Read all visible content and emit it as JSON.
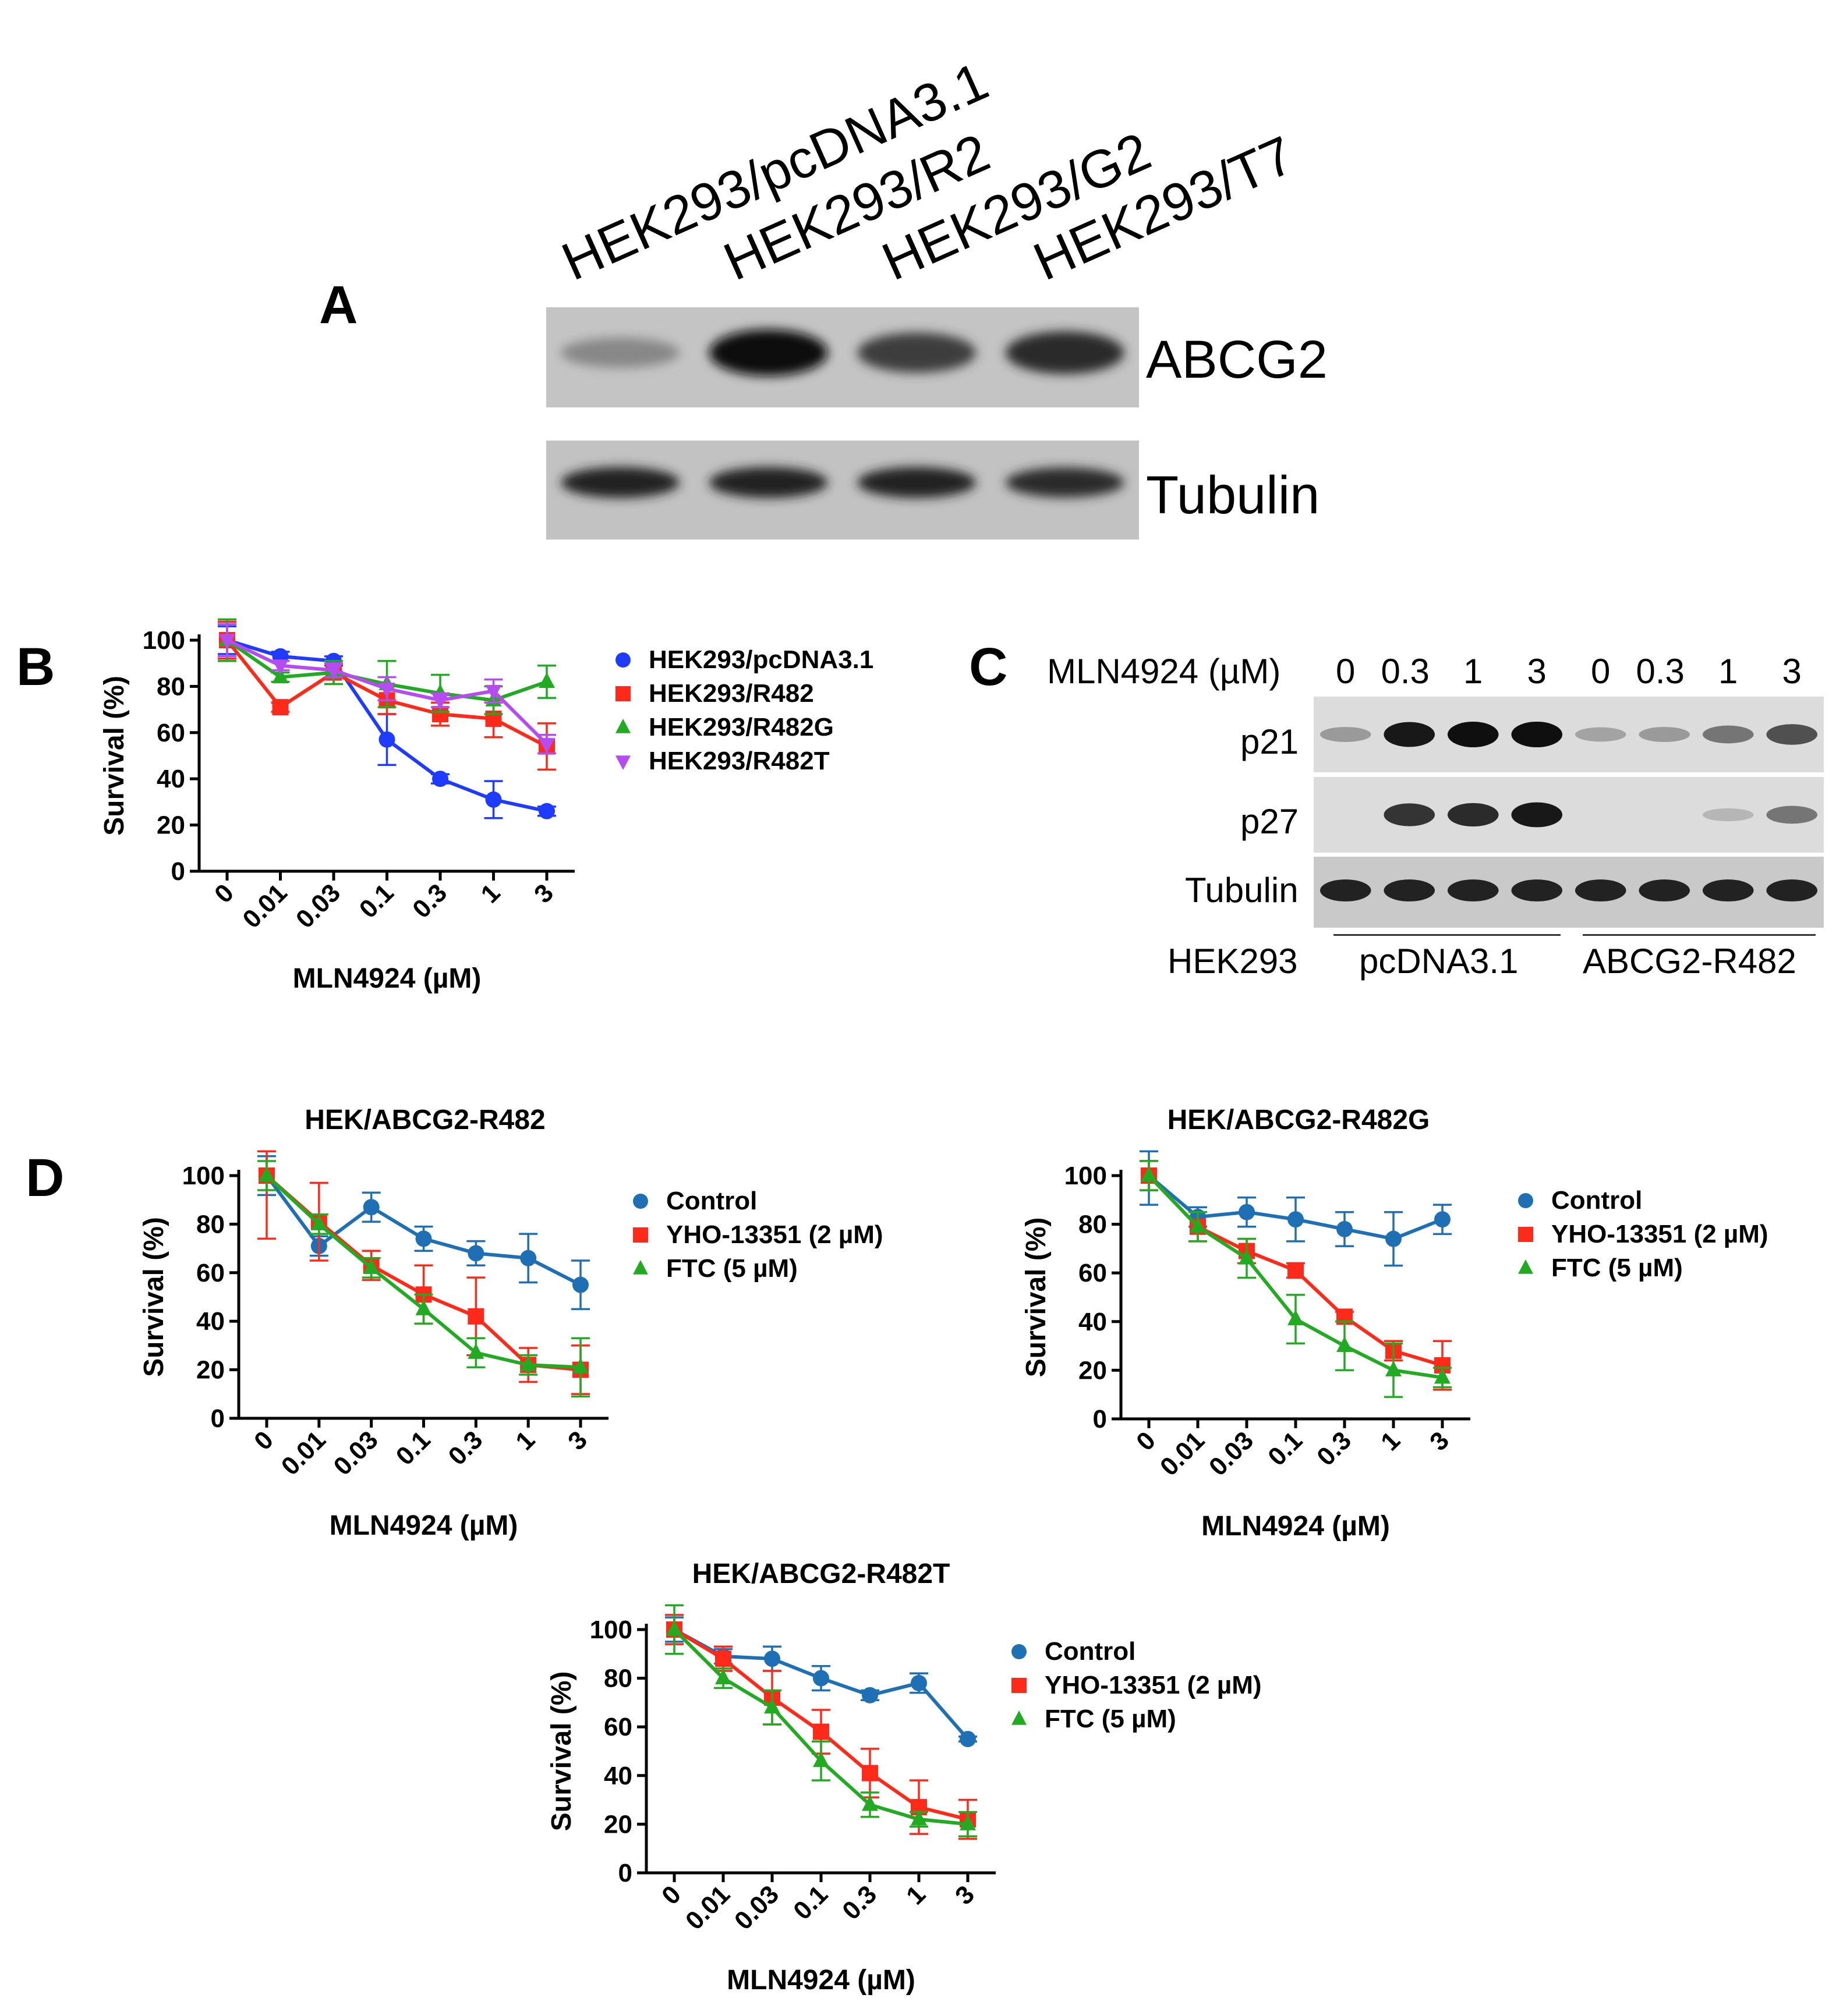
{
  "panels": {
    "A": "A",
    "B": "B",
    "C": "C",
    "D": "D"
  },
  "panel_a": {
    "lanes": [
      "HEK293/pcDNA3.1",
      "HEK293/R2",
      "HEK293/G2",
      "HEK293/T7"
    ],
    "rows": [
      "ABCG2",
      "Tubulin"
    ],
    "bands": {
      "ABCG2": [
        0.35,
        1.0,
        0.75,
        0.85
      ],
      "Tubulin": [
        0.9,
        0.9,
        0.9,
        0.85
      ]
    }
  },
  "panel_c": {
    "dose_label": "MLN4924 (µM)",
    "doses": [
      "0",
      "0.3",
      "1",
      "3",
      "0",
      "0.3",
      "1",
      "3"
    ],
    "rows": [
      "p21",
      "p27",
      "Tubulin"
    ],
    "bands": {
      "p21": [
        0.25,
        0.95,
        1.0,
        1.0,
        0.2,
        0.25,
        0.45,
        0.65
      ],
      "p27": [
        0.0,
        0.8,
        0.85,
        0.95,
        0.0,
        0.0,
        0.1,
        0.45
      ],
      "Tubulin": [
        0.9,
        0.9,
        0.9,
        0.9,
        0.9,
        0.9,
        0.9,
        0.9
      ]
    },
    "cell_label": "HEK293",
    "groups": [
      "pcDNA3.1",
      "ABCG2-R482"
    ]
  },
  "chart_data": [
    {
      "id": "B",
      "type": "line",
      "title": "",
      "xlabel": "MLN4924 (µM)",
      "ylabel": "Survival (%)",
      "categories": [
        "0",
        "0.01",
        "0.03",
        "0.1",
        "0.3",
        "1",
        "3"
      ],
      "ylim": [
        0,
        100
      ],
      "yticks": [
        0,
        20,
        40,
        60,
        80,
        100
      ],
      "legend_position": "right",
      "series": [
        {
          "name": "HEK293/pcDNA3.1",
          "color": "#1f3bff",
          "marker": "circle",
          "values": [
            100,
            93,
            91,
            57,
            40,
            31,
            26
          ],
          "err": [
            6,
            2,
            2,
            11,
            2,
            8,
            2
          ]
        },
        {
          "name": "HEK293/R482",
          "color": "#ff2a1a",
          "marker": "square",
          "values": [
            100,
            71,
            86,
            74,
            68,
            66,
            54
          ],
          "err": [
            8,
            2,
            5,
            6,
            5,
            8,
            10
          ]
        },
        {
          "name": "HEK293/R482G",
          "color": "#22aa22",
          "marker": "triangle",
          "values": [
            100,
            84,
            86,
            81,
            77,
            74,
            82
          ],
          "err": [
            9,
            2,
            5,
            10,
            8,
            6,
            7
          ]
        },
        {
          "name": "HEK293/R482T",
          "color": "#b44cf0",
          "marker": "triangle-down",
          "values": [
            100,
            89,
            87,
            79,
            74,
            78,
            55
          ],
          "err": [
            7,
            2,
            3,
            5,
            3,
            5,
            4
          ]
        }
      ]
    },
    {
      "id": "D1",
      "type": "line",
      "title": "HEK/ABCG2-R482",
      "xlabel": "MLN4924 (µM)",
      "ylabel": "Survival (%)",
      "categories": [
        "0",
        "0.01",
        "0.03",
        "0.1",
        "0.3",
        "1",
        "3"
      ],
      "ylim": [
        0,
        100
      ],
      "yticks": [
        0,
        20,
        40,
        60,
        80,
        100
      ],
      "legend_position": "right",
      "series": [
        {
          "name": "Control",
          "color": "#1f6fb4",
          "marker": "circle",
          "values": [
            100,
            71,
            87,
            74,
            68,
            66,
            55
          ],
          "err": [
            8,
            4,
            6,
            5,
            5,
            10,
            10
          ]
        },
        {
          "name": "YHO-13351 (2 µM)",
          "color": "#ff2a1a",
          "marker": "square",
          "values": [
            100,
            81,
            63,
            51,
            42,
            22,
            20
          ],
          "err": [
            26,
            16,
            6,
            12,
            16,
            7,
            10
          ]
        },
        {
          "name": "FTC (5 µM)",
          "color": "#22aa22",
          "marker": "triangle",
          "values": [
            100,
            80,
            62,
            45,
            27,
            22,
            21
          ],
          "err": [
            6,
            4,
            4,
            6,
            6,
            4,
            12
          ]
        }
      ]
    },
    {
      "id": "D2",
      "type": "line",
      "title": "HEK/ABCG2-R482G",
      "xlabel": "MLN4924 (µM)",
      "ylabel": "Survival (%)",
      "categories": [
        "0",
        "0.01",
        "0.03",
        "0.1",
        "0.3",
        "1",
        "3"
      ],
      "ylim": [
        0,
        100
      ],
      "yticks": [
        0,
        20,
        40,
        60,
        80,
        100
      ],
      "legend_position": "right",
      "series": [
        {
          "name": "Control",
          "color": "#1f6fb4",
          "marker": "circle",
          "values": [
            100,
            83,
            85,
            82,
            78,
            74,
            82
          ],
          "err": [
            12,
            4,
            6,
            9,
            7,
            11,
            6
          ]
        },
        {
          "name": "YHO-13351 (2 µM)",
          "color": "#ff2a1a",
          "marker": "square",
          "values": [
            100,
            79,
            69,
            61,
            42,
            28,
            22
          ],
          "err": [
            6,
            6,
            5,
            3,
            2,
            4,
            10
          ]
        },
        {
          "name": "FTC (5 µM)",
          "color": "#22aa22",
          "marker": "triangle",
          "values": [
            100,
            79,
            66,
            41,
            30,
            20,
            17
          ],
          "err": [
            6,
            6,
            8,
            10,
            10,
            11,
            4
          ]
        }
      ]
    },
    {
      "id": "D3",
      "type": "line",
      "title": "HEK/ABCG2-R482T",
      "xlabel": "MLN4924 (µM)",
      "ylabel": "Survival (%)",
      "categories": [
        "0",
        "0.01",
        "0.03",
        "0.1",
        "0.3",
        "1",
        "3"
      ],
      "ylim": [
        0,
        100
      ],
      "yticks": [
        0,
        20,
        40,
        60,
        80,
        100
      ],
      "legend_position": "right",
      "series": [
        {
          "name": "Control",
          "color": "#1f6fb4",
          "marker": "circle",
          "values": [
            100,
            89,
            88,
            80,
            73,
            78,
            55
          ],
          "err": [
            5,
            3,
            5,
            5,
            2,
            4,
            1
          ]
        },
        {
          "name": "YHO-13351 (2 µM)",
          "color": "#ff2a1a",
          "marker": "square",
          "values": [
            100,
            88,
            72,
            58,
            41,
            27,
            22
          ],
          "err": [
            6,
            5,
            11,
            9,
            10,
            11,
            8
          ]
        },
        {
          "name": "FTC (5 µM)",
          "color": "#22aa22",
          "marker": "triangle",
          "values": [
            100,
            80,
            68,
            46,
            28,
            22,
            20
          ],
          "err": [
            10,
            4,
            7,
            8,
            5,
            3,
            5
          ]
        }
      ]
    }
  ]
}
